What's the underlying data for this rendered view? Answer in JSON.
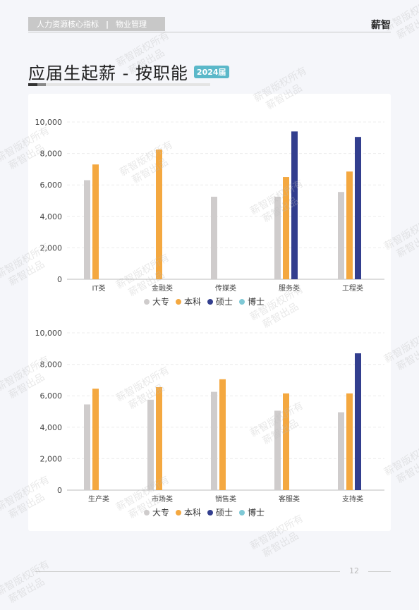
{
  "header": {
    "category": "人力资源核心指标",
    "separator": "|",
    "section": "物业管理",
    "brand": "薪智"
  },
  "page": {
    "title": "应届生起薪 - 按职能",
    "badge": "2024届",
    "page_number": "12"
  },
  "watermark": {
    "line1": "薪智版权所有",
    "line2": "薪智出品"
  },
  "colors": {
    "大专": "#cfcccc",
    "本科": "#f4a840",
    "硕士": "#323e8e",
    "博士": "#7fc9d6"
  },
  "chart_data": [
    {
      "type": "bar",
      "categories": [
        "IT类",
        "金融类",
        "传媒类",
        "服务类",
        "工程类"
      ],
      "series": [
        {
          "name": "大专",
          "values": [
            6300,
            null,
            5250,
            5250,
            5550
          ]
        },
        {
          "name": "本科",
          "values": [
            7300,
            8250,
            null,
            6500,
            6850
          ]
        },
        {
          "name": "硕士",
          "values": [
            null,
            null,
            null,
            9400,
            9050
          ]
        },
        {
          "name": "博士",
          "values": [
            null,
            null,
            null,
            null,
            null
          ]
        }
      ],
      "ylim": [
        0,
        10000
      ],
      "yticks": [
        "0",
        "2,000",
        "4,000",
        "6,000",
        "8,000",
        "10,000"
      ],
      "legend": "bottom"
    },
    {
      "type": "bar",
      "categories": [
        "生产类",
        "市场类",
        "销售类",
        "客服类",
        "支持类"
      ],
      "series": [
        {
          "name": "大专",
          "values": [
            5450,
            5750,
            6250,
            5050,
            4950
          ]
        },
        {
          "name": "本科",
          "values": [
            6450,
            6550,
            7050,
            6150,
            6150
          ]
        },
        {
          "name": "硕士",
          "values": [
            null,
            null,
            null,
            null,
            8700
          ]
        },
        {
          "name": "博士",
          "values": [
            null,
            null,
            null,
            null,
            null
          ]
        }
      ],
      "ylim": [
        0,
        10000
      ],
      "yticks": [
        "0",
        "2,000",
        "4,000",
        "6,000",
        "8,000",
        "10,000"
      ],
      "legend": "bottom"
    }
  ]
}
